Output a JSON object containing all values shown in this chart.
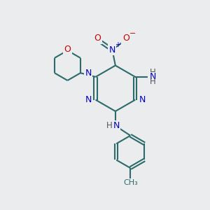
{
  "bg_color": "#eaecee",
  "bond_color": "#2d6b6b",
  "N_color": "#0000cc",
  "O_color": "#cc0000",
  "line_color": "#2d6b6b",
  "H_color": "#555555",
  "lw": 1.5,
  "figsize": [
    3.0,
    3.0
  ],
  "dpi": 100,
  "xlim": [
    0,
    10
  ],
  "ylim": [
    0,
    10
  ]
}
